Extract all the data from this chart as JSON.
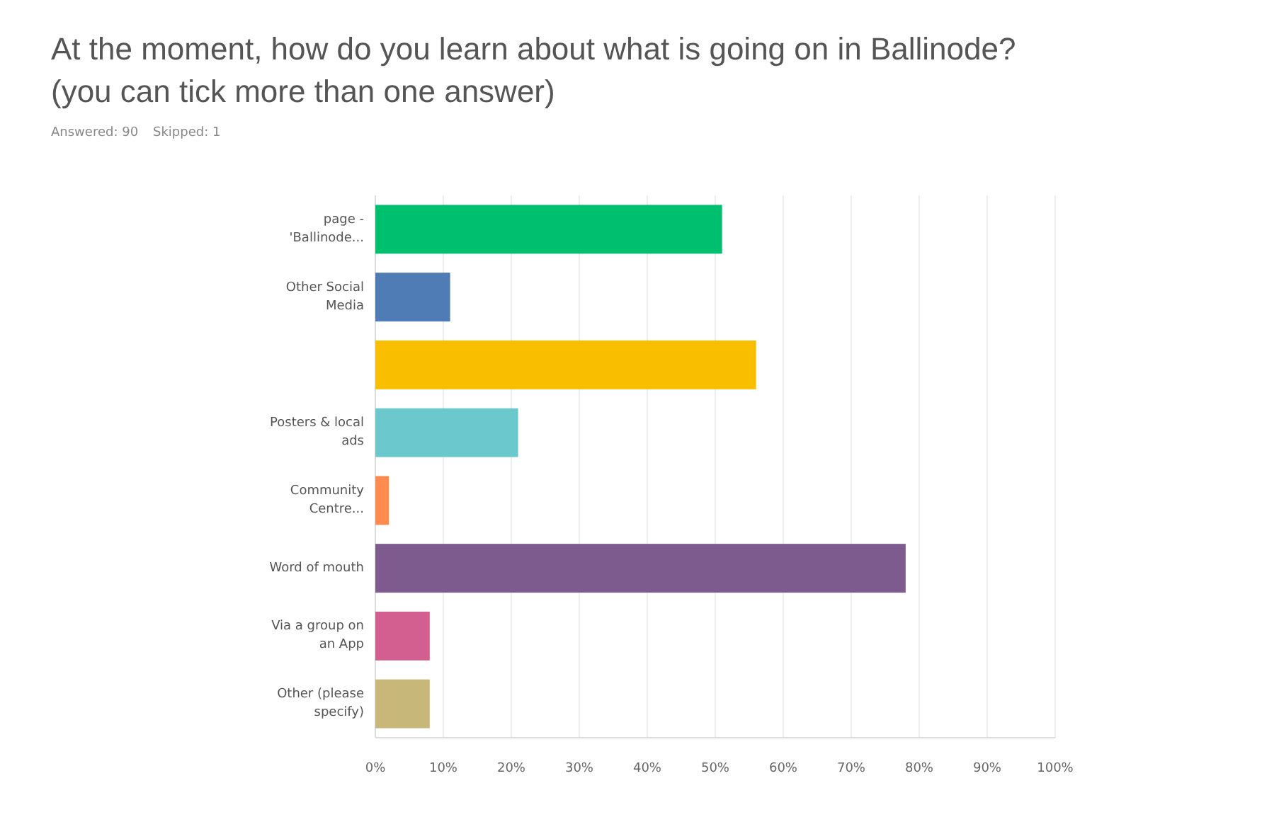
{
  "chart_data": {
    "type": "bar",
    "orientation": "horizontal",
    "title": "At the moment, how do you learn about what is going on in Ballinode? (you can tick more than one answer)",
    "annotations": [
      "Answered: 90",
      "Skipped: 1"
    ],
    "categories": [
      "page - 'Ballinode...",
      "Other Social Media",
      null,
      "Posters & local ads",
      "Community Centre...",
      "Word of mouth",
      "Via a group on an App",
      "Other (please specify)"
    ],
    "values": [
      51,
      11,
      56,
      21,
      2,
      78,
      8,
      8
    ],
    "colors": [
      "#00bf6f",
      "#507cb6",
      "#f9be00",
      "#6bc8cd",
      "#ff8b4f",
      "#7d5b8f",
      "#d25f90",
      "#c7b879"
    ],
    "xlim": [
      0,
      100
    ],
    "xticks": [
      {
        "value": 0,
        "label": "0%"
      },
      {
        "value": 10,
        "label": "10%"
      },
      {
        "value": 20,
        "label": "20%"
      },
      {
        "value": 30,
        "label": "30%"
      },
      {
        "value": 40,
        "label": "40%"
      },
      {
        "value": 50,
        "label": "50%"
      },
      {
        "value": 60,
        "label": "60%"
      },
      {
        "value": 70,
        "label": "70%"
      },
      {
        "value": 80,
        "label": "80%"
      },
      {
        "value": 90,
        "label": "90%"
      },
      {
        "value": 100,
        "label": "100%"
      }
    ],
    "grid": "x"
  }
}
